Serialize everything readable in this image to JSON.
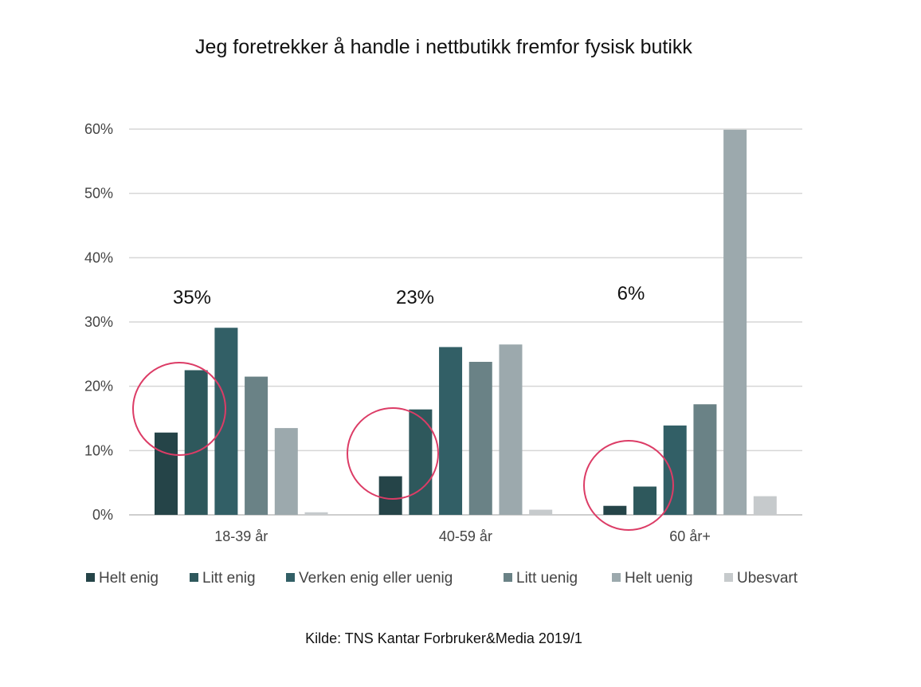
{
  "chart_data": {
    "type": "bar",
    "title": "Jeg foretrekker å handle i nettbutikk fremfor fysisk butikk",
    "categories": [
      "18-39 år",
      "40-59 år",
      "60 år+"
    ],
    "yticks": [
      "0%",
      "10%",
      "20%",
      "30%",
      "40%",
      "50%",
      "60%"
    ],
    "ylim": [
      0,
      60
    ],
    "grid": true,
    "legend_position": "bottom",
    "series": [
      {
        "name": "Helt enig",
        "color": "#254448",
        "values": [
          12.8,
          6.0,
          1.4
        ]
      },
      {
        "name": "Litt enig",
        "color": "#2e585c",
        "values": [
          22.5,
          16.4,
          4.4
        ]
      },
      {
        "name": "Verken enig eller uenig",
        "color": "#325f66",
        "values": [
          29.1,
          26.1,
          13.9
        ]
      },
      {
        "name": "Litt uenig",
        "color": "#6a8286",
        "values": [
          21.5,
          23.8,
          17.2
        ]
      },
      {
        "name": "Helt uenig",
        "color": "#9ca9ad",
        "values": [
          13.5,
          26.5,
          59.9
        ]
      },
      {
        "name": "Ubesvart",
        "color": "#c6cacc",
        "values": [
          0.4,
          0.8,
          2.9
        ]
      }
    ],
    "annotations": [
      {
        "text": "35%",
        "category": "18-39 år"
      },
      {
        "text": "23%",
        "category": "40-59 år"
      },
      {
        "text": "6%",
        "category": "60 år+"
      }
    ],
    "highlight_color": "#dc3c66"
  },
  "source": "Kilde: TNS Kantar Forbruker&Media 2019/1"
}
